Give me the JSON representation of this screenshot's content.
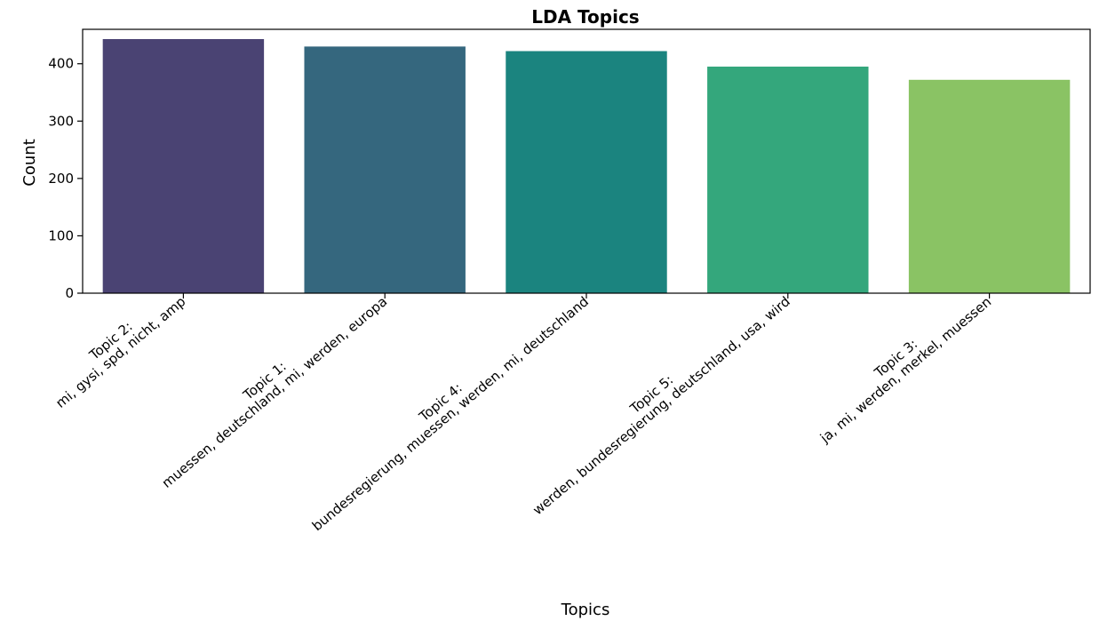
{
  "chart_data": {
    "type": "bar",
    "title": "LDA Topics",
    "xlabel": "Topics",
    "ylabel": "Count",
    "ylim": [
      0,
      460
    ],
    "yticks": [
      0,
      100,
      200,
      300,
      400
    ],
    "grid": false,
    "categories": [
      [
        "Topic 2:",
        "mi, gysi, spd, nicht, amp"
      ],
      [
        "Topic 1:",
        "muessen, deutschland, mi, werden, europa"
      ],
      [
        "Topic 4:",
        "bundesregierung, muessen, werden, mi, deutschland"
      ],
      [
        "Topic 5:",
        "werden, bundesregierung, deutschland, usa, wird"
      ],
      [
        "Topic 3:",
        "ja, mi, werden, merkel, muessen"
      ]
    ],
    "values": [
      443,
      430,
      422,
      395,
      372
    ],
    "colors": [
      "#4a4373",
      "#35677e",
      "#1b847f",
      "#34a77c",
      "#8ac364"
    ]
  }
}
